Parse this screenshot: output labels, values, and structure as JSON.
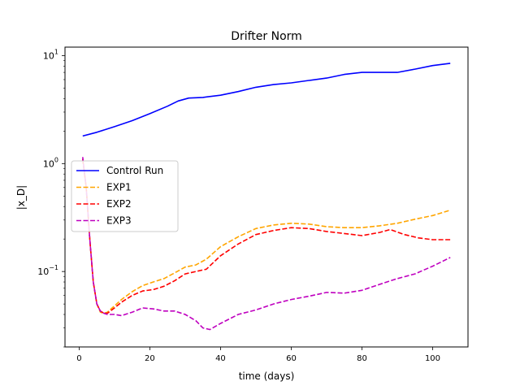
{
  "chart_data": {
    "type": "line",
    "title": "Drifter Norm",
    "xlabel": "time (days)",
    "ylabel": "|x_D|",
    "yscale": "log",
    "xlim": [
      -4,
      110
    ],
    "ylim": [
      0.02,
      12
    ],
    "grid": false,
    "legend_position": "center-left",
    "x_ticks": [
      0,
      20,
      40,
      60,
      80,
      100
    ],
    "y_ticks": [
      {
        "value": 0.1,
        "base": "10",
        "exp": "−1"
      },
      {
        "value": 1,
        "base": "10",
        "exp": "0"
      },
      {
        "value": 10,
        "base": "10",
        "exp": "1"
      }
    ],
    "series": [
      {
        "name": "Control Run",
        "color": "#0000ff",
        "dash": "solid",
        "x": [
          1,
          5,
          10,
          15,
          20,
          25,
          28,
          31,
          35,
          40,
          45,
          50,
          55,
          60,
          65,
          70,
          75,
          80,
          85,
          90,
          95,
          100,
          105
        ],
        "y": [
          1.8,
          1.95,
          2.2,
          2.5,
          2.9,
          3.4,
          3.8,
          4.05,
          4.1,
          4.3,
          4.65,
          5.1,
          5.4,
          5.6,
          5.9,
          6.2,
          6.7,
          7.0,
          7.0,
          7.0,
          7.5,
          8.1,
          8.5
        ]
      },
      {
        "name": "EXP1",
        "color": "#ffa500",
        "dash": "dashed",
        "x": [
          1,
          2,
          3,
          4,
          5,
          6,
          7,
          8,
          10,
          12,
          15,
          18,
          21,
          24,
          27,
          30,
          33,
          36,
          40,
          45,
          50,
          55,
          60,
          65,
          70,
          75,
          80,
          85,
          90,
          95,
          100,
          105
        ],
        "y": [
          1.1,
          0.6,
          0.2,
          0.08,
          0.05,
          0.042,
          0.041,
          0.042,
          0.048,
          0.055,
          0.065,
          0.074,
          0.08,
          0.086,
          0.097,
          0.11,
          0.115,
          0.13,
          0.17,
          0.21,
          0.25,
          0.27,
          0.28,
          0.275,
          0.26,
          0.255,
          0.255,
          0.265,
          0.28,
          0.305,
          0.33,
          0.37
        ]
      },
      {
        "name": "EXP2",
        "color": "#ff0000",
        "dash": "dashed",
        "x": [
          1,
          2,
          3,
          4,
          5,
          6,
          7,
          8,
          10,
          12,
          15,
          18,
          21,
          24,
          27,
          30,
          33,
          36,
          40,
          45,
          50,
          55,
          60,
          65,
          70,
          75,
          80,
          85,
          88,
          92,
          96,
          100,
          105
        ],
        "y": [
          1.1,
          0.6,
          0.2,
          0.08,
          0.05,
          0.043,
          0.041,
          0.041,
          0.046,
          0.052,
          0.06,
          0.066,
          0.068,
          0.073,
          0.082,
          0.095,
          0.1,
          0.105,
          0.14,
          0.18,
          0.22,
          0.24,
          0.255,
          0.25,
          0.235,
          0.225,
          0.215,
          0.23,
          0.245,
          0.22,
          0.205,
          0.197,
          0.197
        ]
      },
      {
        "name": "EXP3",
        "color": "#bf00bf",
        "dash": "dashed",
        "x": [
          1,
          2,
          3,
          4,
          5,
          6,
          7,
          8,
          10,
          12,
          15,
          18,
          21,
          24,
          27,
          30,
          33,
          35,
          37,
          40,
          45,
          50,
          55,
          60,
          65,
          70,
          75,
          80,
          85,
          90,
          95,
          100,
          105
        ],
        "y": [
          1.15,
          0.6,
          0.2,
          0.08,
          0.05,
          0.043,
          0.041,
          0.04,
          0.04,
          0.039,
          0.042,
          0.046,
          0.045,
          0.043,
          0.043,
          0.04,
          0.035,
          0.03,
          0.029,
          0.033,
          0.04,
          0.044,
          0.05,
          0.055,
          0.059,
          0.064,
          0.063,
          0.067,
          0.076,
          0.086,
          0.095,
          0.112,
          0.135
        ]
      }
    ]
  }
}
